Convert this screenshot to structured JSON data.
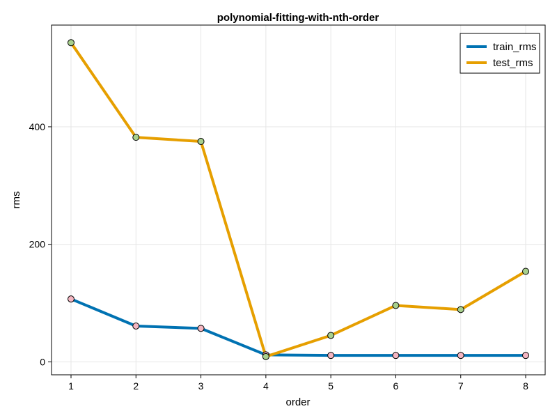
{
  "chart_data": {
    "type": "line",
    "title": "polynomial-fitting-with-nth-order",
    "xlabel": "order",
    "ylabel": "rms",
    "x": [
      1,
      2,
      3,
      4,
      5,
      6,
      7,
      8
    ],
    "xticks": [
      "1",
      "2",
      "3",
      "4",
      "5",
      "6",
      "7",
      "8"
    ],
    "yticks": [
      0,
      200,
      400
    ],
    "xlim": [
      0.7,
      8.3
    ],
    "ylim": [
      -22,
      573
    ],
    "grid": true,
    "legend_position": "top-right",
    "marker_colors": {
      "train_rms": "#f4b6c2",
      "test_rms": "#a8d08d"
    },
    "series": [
      {
        "name": "train_rms",
        "color": "#0072b2",
        "values": [
          107,
          61,
          57,
          12,
          11,
          11,
          11,
          11
        ]
      },
      {
        "name": "test_rms",
        "color": "#e69f00",
        "values": [
          543,
          382,
          375,
          9,
          45,
          96,
          89,
          154
        ]
      }
    ]
  }
}
